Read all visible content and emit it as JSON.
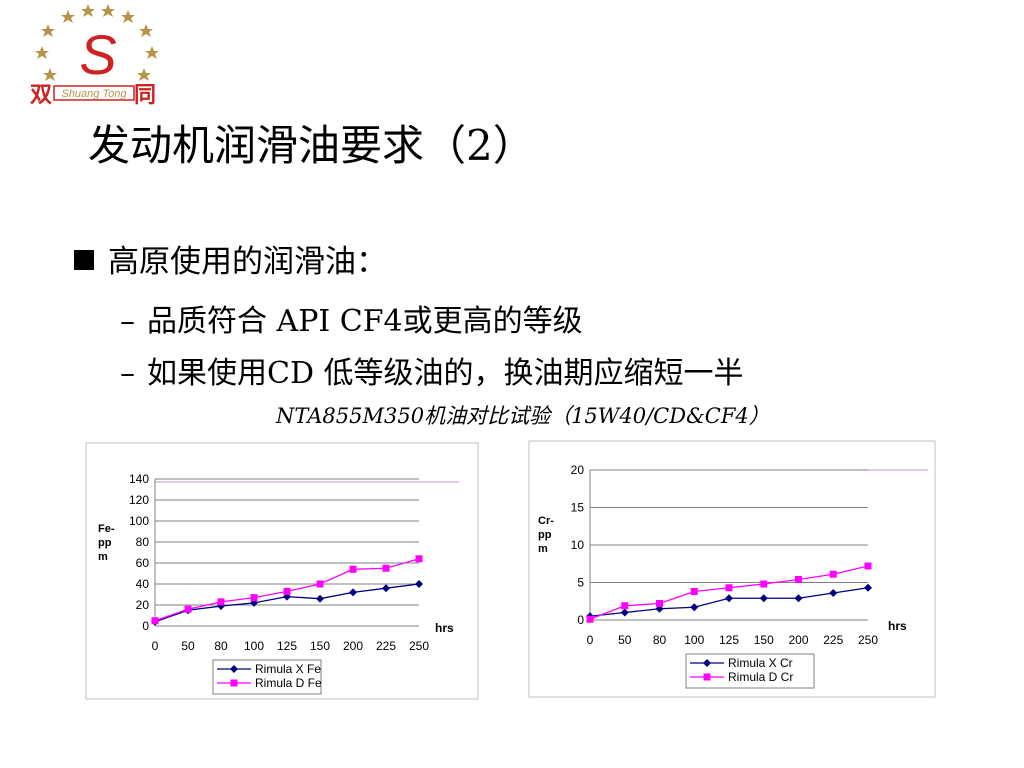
{
  "logo": {
    "left_char": "双",
    "right_char": "同",
    "script_text": "Shuang Tong",
    "monogram": "S"
  },
  "title": "发动机润滑油要求（2）",
  "bullet": {
    "text": "高原使用的润滑油："
  },
  "sub_items": [
    {
      "dash": "–",
      "text": "品质符合 API CF4或更高的等级"
    },
    {
      "dash": "–",
      "text": "如果使用CD 低等级油的，换油期应缩短一半"
    }
  ],
  "caption": "NTA855M350机油对比试验（15W40/CD&CF4）",
  "colors": {
    "series_a": "#00007f",
    "series_b": "#ff00ff",
    "grid": "#808080",
    "logo_red": "#cc2222",
    "logo_gold": "#b8944a"
  },
  "chart_data": [
    {
      "type": "line",
      "x": [
        0,
        50,
        80,
        100,
        125,
        150,
        200,
        225,
        250
      ],
      "xlabel": "hrs",
      "ylabel": "Fe-ppm",
      "ylabel_lines": [
        "Fe-",
        "pp",
        "m"
      ],
      "ylim": [
        0,
        140
      ],
      "yticks": [
        0,
        20,
        40,
        60,
        80,
        100,
        120,
        140
      ],
      "grid": true,
      "legend": "bottom-center",
      "series": [
        {
          "name": "Rimula X Fe",
          "marker": "diamond",
          "values": [
            4,
            15,
            19,
            22,
            28,
            26,
            32,
            36,
            40
          ]
        },
        {
          "name": "Rimula D Fe",
          "marker": "square",
          "values": [
            5,
            16,
            23,
            27,
            33,
            40,
            54,
            55,
            64
          ]
        }
      ]
    },
    {
      "type": "line",
      "x": [
        0,
        50,
        80,
        100,
        125,
        150,
        200,
        225,
        250
      ],
      "xlabel": "hrs",
      "ylabel": "Cr-ppm",
      "ylabel_lines": [
        "Cr-",
        "pp",
        "m"
      ],
      "ylim": [
        0,
        20
      ],
      "yticks": [
        0,
        5,
        10,
        15,
        20
      ],
      "grid": true,
      "legend": "bottom-center",
      "series": [
        {
          "name": "Rimula X Cr",
          "marker": "diamond",
          "values": [
            0.5,
            1.0,
            1.5,
            1.7,
            2.9,
            2.9,
            2.9,
            3.6,
            4.3
          ]
        },
        {
          "name": "Rimula D Cr",
          "marker": "square",
          "values": [
            0.1,
            1.9,
            2.2,
            3.8,
            4.3,
            4.8,
            5.4,
            6.1,
            7.2
          ]
        }
      ]
    }
  ]
}
